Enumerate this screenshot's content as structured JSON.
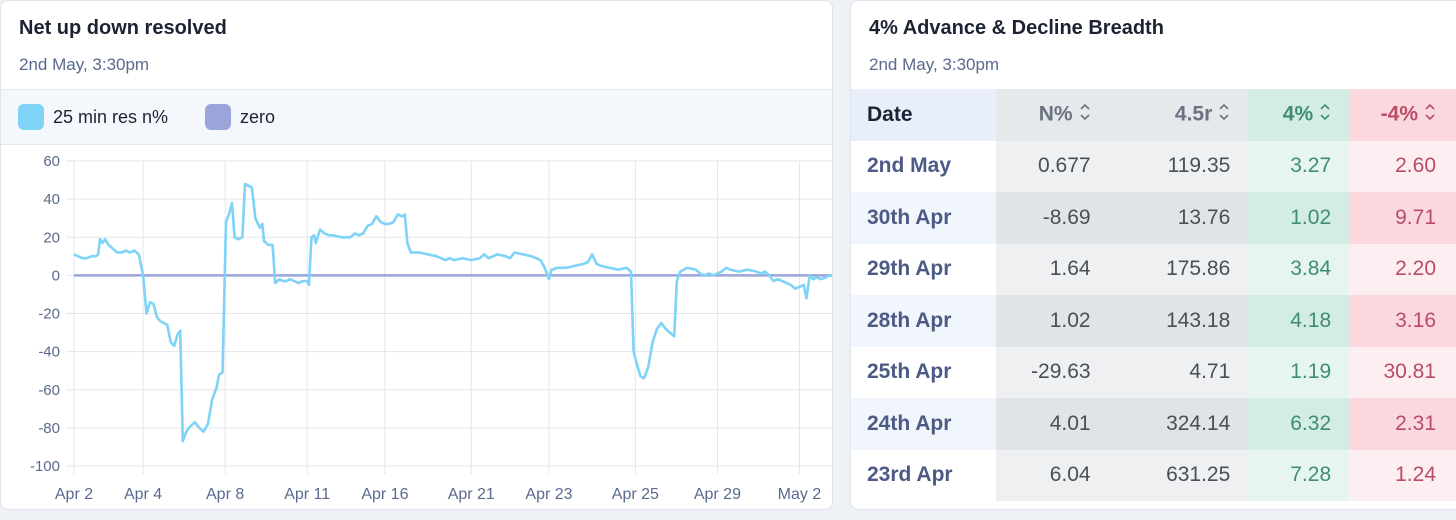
{
  "left_card": {
    "title": "Net up down resolved",
    "subtitle": "2nd May, 3:30pm",
    "legend": [
      {
        "label": "25 min res n%",
        "color": "#7fd3f7"
      },
      {
        "label": "zero",
        "color": "#9aa5d9"
      }
    ]
  },
  "right_card": {
    "title": "4% Advance & Decline Breadth",
    "subtitle": "2nd May, 3:30pm",
    "columns": [
      "Date",
      "N%",
      "4.5r",
      "4%",
      "-4%"
    ],
    "rows": [
      {
        "date": "2nd May",
        "n": "0.677",
        "r": "119.35",
        "adv": "3.27",
        "dec": "2.60"
      },
      {
        "date": "30th Apr",
        "n": "-8.69",
        "r": "13.76",
        "adv": "1.02",
        "dec": "9.71"
      },
      {
        "date": "29th Apr",
        "n": "1.64",
        "r": "175.86",
        "adv": "3.84",
        "dec": "2.20"
      },
      {
        "date": "28th Apr",
        "n": "1.02",
        "r": "143.18",
        "adv": "4.18",
        "dec": "3.16"
      },
      {
        "date": "25th Apr",
        "n": "-29.63",
        "r": "4.71",
        "adv": "1.19",
        "dec": "30.81"
      },
      {
        "date": "24th Apr",
        "n": "4.01",
        "r": "324.14",
        "adv": "6.32",
        "dec": "2.31"
      },
      {
        "date": "23rd Apr",
        "n": "6.04",
        "r": "631.25",
        "adv": "7.28",
        "dec": "1.24"
      }
    ]
  },
  "chart_data": {
    "type": "line",
    "title": "Net up down resolved",
    "xlabel": "",
    "ylabel": "",
    "ylim": [
      -100,
      60
    ],
    "yticks": [
      60,
      40,
      20,
      0,
      -20,
      -40,
      -60,
      -80,
      -100
    ],
    "xticks": [
      {
        "label": "Apr 2",
        "x": 0
      },
      {
        "label": "Apr 4",
        "x": 8
      },
      {
        "label": "Apr 8",
        "x": 17.5
      },
      {
        "label": "Apr 11",
        "x": 27
      },
      {
        "label": "Apr 16",
        "x": 36
      },
      {
        "label": "Apr 21",
        "x": 46
      },
      {
        "label": "Apr 23",
        "x": 55
      },
      {
        "label": "Apr 25",
        "x": 65
      },
      {
        "label": "Apr 29",
        "x": 74.5
      },
      {
        "label": "May 2",
        "x": 84
      }
    ],
    "xlim": [
      0,
      88
    ],
    "grid": true,
    "legend_position": "top-left",
    "series": [
      {
        "name": "25 min res n%",
        "color": "#7fd3f7",
        "points": [
          [
            0,
            11
          ],
          [
            0.5,
            10
          ],
          [
            1,
            9
          ],
          [
            1.5,
            9
          ],
          [
            2,
            10
          ],
          [
            2.5,
            10
          ],
          [
            2.8,
            11
          ],
          [
            3,
            19
          ],
          [
            3.3,
            17
          ],
          [
            3.6,
            19
          ],
          [
            4,
            16
          ],
          [
            4.5,
            14
          ],
          [
            5,
            12
          ],
          [
            5.5,
            12
          ],
          [
            6,
            13
          ],
          [
            6.5,
            12
          ],
          [
            7,
            13
          ],
          [
            7.5,
            11
          ],
          [
            8,
            0
          ],
          [
            8.4,
            -20
          ],
          [
            8.8,
            -14
          ],
          [
            9.2,
            -15
          ],
          [
            9.6,
            -22
          ],
          [
            10,
            -24
          ],
          [
            10.4,
            -25
          ],
          [
            10.8,
            -26
          ],
          [
            11.2,
            -35
          ],
          [
            11.6,
            -37
          ],
          [
            12,
            -31
          ],
          [
            12.3,
            -29
          ],
          [
            12.6,
            -87
          ],
          [
            13,
            -82
          ],
          [
            13.5,
            -79
          ],
          [
            14,
            -77
          ],
          [
            14.5,
            -80
          ],
          [
            15,
            -82
          ],
          [
            15.5,
            -78
          ],
          [
            16,
            -65
          ],
          [
            16.5,
            -59
          ],
          [
            16.8,
            -52
          ],
          [
            17.2,
            -51
          ],
          [
            17.6,
            28
          ],
          [
            18,
            33
          ],
          [
            18.3,
            38
          ],
          [
            18.6,
            20
          ],
          [
            19,
            19
          ],
          [
            19.5,
            20
          ],
          [
            19.8,
            48
          ],
          [
            20.2,
            47
          ],
          [
            20.6,
            46
          ],
          [
            21,
            30
          ],
          [
            21.5,
            25
          ],
          [
            21.8,
            27
          ],
          [
            22,
            18
          ],
          [
            22.5,
            16
          ],
          [
            23,
            16
          ],
          [
            23.3,
            -4
          ],
          [
            23.8,
            -2
          ],
          [
            24.2,
            -3
          ],
          [
            24.6,
            -3
          ],
          [
            25,
            -2
          ],
          [
            25.5,
            -3
          ],
          [
            26,
            -4
          ],
          [
            26.5,
            -3
          ],
          [
            27,
            -3
          ],
          [
            27.2,
            -5
          ],
          [
            27.5,
            20
          ],
          [
            27.8,
            21
          ],
          [
            28,
            17
          ],
          [
            28.5,
            24
          ],
          [
            29,
            22
          ],
          [
            29.5,
            21
          ],
          [
            30,
            21
          ],
          [
            31,
            20
          ],
          [
            32,
            20
          ],
          [
            32.5,
            22
          ],
          [
            33,
            21
          ],
          [
            33.5,
            22
          ],
          [
            34,
            26
          ],
          [
            34.5,
            27
          ],
          [
            35,
            31
          ],
          [
            35.5,
            28
          ],
          [
            36,
            27
          ],
          [
            36.5,
            27
          ],
          [
            37,
            28
          ],
          [
            37.5,
            32
          ],
          [
            38,
            31
          ],
          [
            38.3,
            32
          ],
          [
            38.6,
            17
          ],
          [
            39,
            12
          ],
          [
            40,
            12
          ],
          [
            41,
            11
          ],
          [
            42,
            10
          ],
          [
            43,
            8
          ],
          [
            43.5,
            9
          ],
          [
            44,
            8
          ],
          [
            45,
            9
          ],
          [
            46,
            8
          ],
          [
            47,
            9
          ],
          [
            47.5,
            11
          ],
          [
            48,
            9
          ],
          [
            48.5,
            10
          ],
          [
            49,
            11
          ],
          [
            50,
            10
          ],
          [
            50.5,
            9
          ],
          [
            51,
            12
          ],
          [
            52,
            11
          ],
          [
            53,
            10
          ],
          [
            54,
            8
          ],
          [
            54.5,
            4
          ],
          [
            55,
            -2
          ],
          [
            55.3,
            3
          ],
          [
            56,
            4
          ],
          [
            57,
            4
          ],
          [
            58,
            5
          ],
          [
            59,
            6
          ],
          [
            59.5,
            7
          ],
          [
            60,
            11
          ],
          [
            60.5,
            6
          ],
          [
            61,
            5
          ],
          [
            62,
            4
          ],
          [
            63,
            3
          ],
          [
            64,
            4
          ],
          [
            64.5,
            2
          ],
          [
            64.8,
            -40
          ],
          [
            65.2,
            -47
          ],
          [
            65.6,
            -53
          ],
          [
            66,
            -54
          ],
          [
            66.5,
            -48
          ],
          [
            67,
            -35
          ],
          [
            67.5,
            -28
          ],
          [
            68,
            -25
          ],
          [
            68.5,
            -28
          ],
          [
            69,
            -30
          ],
          [
            69.5,
            -32
          ],
          [
            69.8,
            -3
          ],
          [
            70.2,
            2
          ],
          [
            71,
            4
          ],
          [
            72,
            3
          ],
          [
            72.5,
            1
          ],
          [
            73,
            0
          ],
          [
            73.5,
            1
          ],
          [
            74,
            0
          ],
          [
            74.5,
            1
          ],
          [
            75,
            2
          ],
          [
            75.5,
            4
          ],
          [
            76,
            3
          ],
          [
            77,
            2
          ],
          [
            78,
            3
          ],
          [
            79,
            2
          ],
          [
            79.5,
            1
          ],
          [
            80,
            2
          ],
          [
            80.5,
            0
          ],
          [
            81,
            -3
          ],
          [
            81.5,
            -2
          ],
          [
            82,
            -3
          ],
          [
            82.5,
            -4
          ],
          [
            83,
            -5
          ],
          [
            83.5,
            -7
          ],
          [
            84,
            -6
          ],
          [
            84.5,
            -5
          ],
          [
            84.8,
            -12
          ],
          [
            85.2,
            0
          ],
          [
            85.6,
            -2
          ],
          [
            86,
            -1
          ],
          [
            86.5,
            -2
          ],
          [
            87,
            -1
          ],
          [
            87.5,
            0
          ],
          [
            88,
            0
          ]
        ]
      },
      {
        "name": "zero",
        "color": "#9aa5d9",
        "points": [
          [
            0,
            0
          ],
          [
            88,
            0
          ]
        ]
      }
    ]
  }
}
